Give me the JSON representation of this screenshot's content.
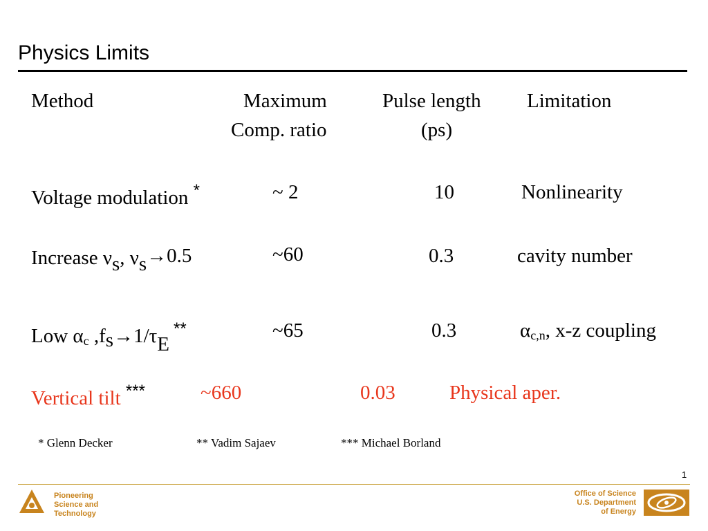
{
  "slide": {
    "title": "Physics Limits",
    "page_number": "1"
  },
  "table": {
    "headers": {
      "method": "Method",
      "max_line1": "Maximum",
      "max_line2": "Comp. ratio",
      "pulse_line1": "Pulse length",
      "pulse_line2": "(ps)",
      "limitation": "Limitation"
    },
    "rows": [
      {
        "method_text": "Voltage modulation",
        "method_mark": "*",
        "ratio": "~ 2",
        "pulse": "10",
        "limitation": "Nonlinearity"
      },
      {
        "method_a": "Increase ν",
        "method_sub1": "s",
        "method_b": ", ν",
        "method_sub2": "s",
        "method_c": "→0.5",
        "ratio": "~60",
        "pulse": "0.3",
        "limitation": "cavity number"
      },
      {
        "method_a": "Low α",
        "method_sub1": "c",
        "method_b": " ,f",
        "method_sub2": "s",
        "method_c": "→1/τ",
        "method_sub3": "E",
        "method_mark": "**",
        "ratio": "~65",
        "pulse": "0.3",
        "limitation_greek": "α",
        "limitation_sub": "c,n",
        "limitation_rest": ", x-z coupling"
      },
      {
        "method_text": "Vertical tilt",
        "method_mark": "***",
        "ratio": "~660",
        "pulse": "0.03",
        "limitation": "Physical aper."
      }
    ]
  },
  "footnotes": {
    "first": "*    Glenn Decker",
    "second": "**  Vadim Sajaev",
    "third": "*** Michael Borland"
  },
  "footer": {
    "left_line1": "Pioneering",
    "left_line2": "Science and",
    "left_line3": "Technology",
    "right_line1": "Office of Science",
    "right_line2": "U.S. Department",
    "right_line3": "of Energy"
  },
  "colors": {
    "highlight_row": "#e8361c",
    "footer_gold": "#c8841e"
  }
}
